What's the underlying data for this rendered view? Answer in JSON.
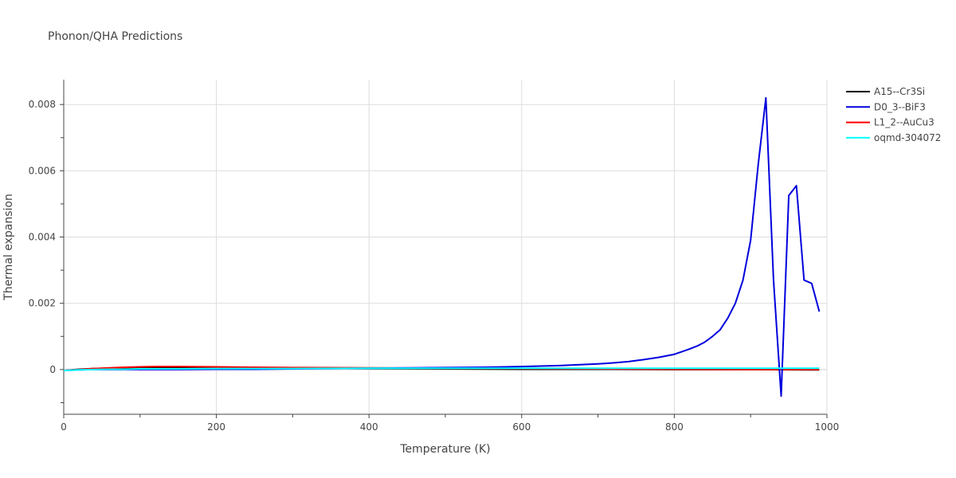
{
  "chart_data": {
    "type": "line",
    "title": "Phonon/QHA Predictions",
    "xlabel": "Temperature (K)",
    "ylabel": "Thermal expansion",
    "xlim": [
      0,
      1000
    ],
    "ylim": [
      -0.00135,
      0.00875
    ],
    "xticks": [
      0,
      200,
      400,
      600,
      800,
      1000
    ],
    "xtick_labels": [
      "0",
      "200",
      "400",
      "600",
      "800",
      "1000"
    ],
    "yticks": [
      0,
      0.002,
      0.004,
      0.006,
      0.008
    ],
    "ytick_labels": [
      "0",
      "0.002",
      "0.004",
      "0.006",
      "0.008"
    ],
    "grid": true,
    "legend_position": "top-right",
    "series": [
      {
        "name": "A15--Cr3Si",
        "color": "#000000",
        "x": [
          0,
          20,
          40,
          60,
          80,
          100,
          150,
          200,
          300,
          400,
          500,
          600,
          700,
          800,
          900,
          990
        ],
        "y": [
          -3e-05,
          1e-05,
          3e-05,
          4e-05,
          5e-05,
          5e-05,
          5e-05,
          5e-05,
          4e-05,
          3e-05,
          2e-05,
          1e-05,
          1e-05,
          0.0,
          0.0,
          -1e-05
        ]
      },
      {
        "name": "D0_3--BiF3",
        "color": "#0000dd",
        "x": [
          0,
          20,
          40,
          60,
          80,
          100,
          150,
          200,
          250,
          300,
          350,
          400,
          450,
          500,
          550,
          600,
          650,
          700,
          720,
          740,
          760,
          780,
          800,
          810,
          820,
          830,
          840,
          850,
          860,
          870,
          880,
          890,
          900,
          910,
          920,
          930,
          940,
          950,
          960,
          970,
          980,
          990
        ],
        "y": [
          -3e-05,
          -1e-05,
          0.0,
          0.0,
          0.0,
          0.0,
          0.0,
          1e-05,
          1e-05,
          2e-05,
          3e-05,
          4e-05,
          5e-05,
          6e-05,
          7e-05,
          9e-05,
          0.00012,
          0.00017,
          0.0002,
          0.00024,
          0.0003,
          0.00037,
          0.00046,
          0.00054,
          0.00062,
          0.00071,
          0.00083,
          0.001,
          0.0012,
          0.00155,
          0.002,
          0.0027,
          0.0039,
          0.0062,
          0.0082,
          0.0027,
          -0.0008,
          0.00525,
          0.00555,
          0.0027,
          0.0026,
          0.00175
        ]
      },
      {
        "name": "L1_2--AuCu3",
        "color": "#ff0000",
        "x": [
          0,
          20,
          40,
          60,
          80,
          100,
          120,
          150,
          200,
          250,
          300,
          400,
          500,
          600,
          700,
          800,
          900,
          990
        ],
        "y": [
          -3e-05,
          0.0,
          3e-05,
          5e-05,
          7e-05,
          8e-05,
          9e-05,
          9e-05,
          8e-05,
          7e-05,
          6e-05,
          5e-05,
          4e-05,
          3e-05,
          2e-05,
          1e-05,
          0.0,
          0.0
        ]
      },
      {
        "name": "oqmd-304072",
        "color": "#00ffff",
        "x": [
          0,
          20,
          40,
          60,
          80,
          100,
          150,
          200,
          300,
          400,
          500,
          600,
          700,
          800,
          900,
          990
        ],
        "y": [
          -3e-05,
          -1e-05,
          0.0,
          1e-05,
          1e-05,
          2e-05,
          2e-05,
          3e-05,
          3e-05,
          4e-05,
          4e-05,
          4e-05,
          4e-05,
          4e-05,
          4e-05,
          4e-05
        ]
      }
    ]
  }
}
